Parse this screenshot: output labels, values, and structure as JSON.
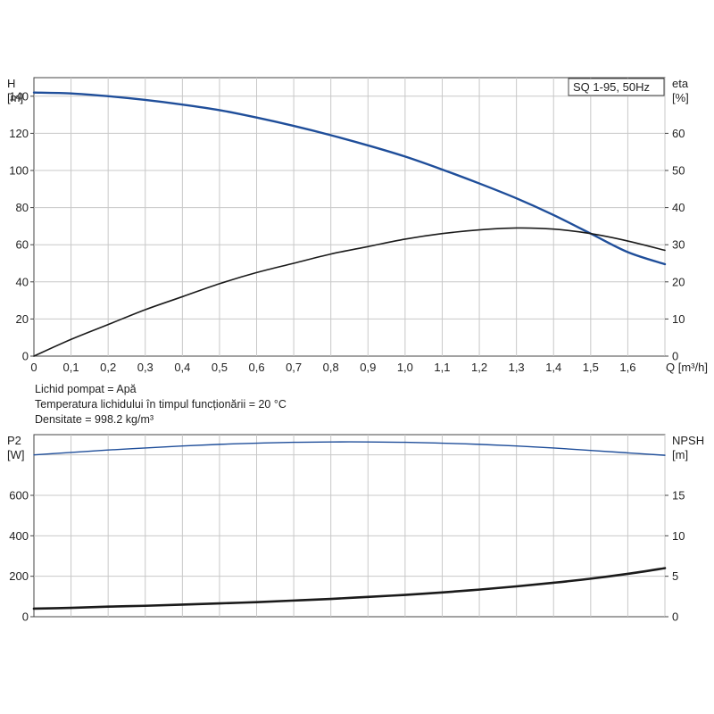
{
  "info_lines": [
    "Lichid pompat = Apă",
    "Temperatura lichidului în timpul funcționării = 20 °C",
    "Densitate = 998.2 kg/m³"
  ],
  "chart_data": [
    {
      "type": "line",
      "legend_text": "SQ 1-95, 50Hz",
      "legend_position": "top-right",
      "grid": true,
      "x_axis": {
        "label": "Q [m³/h]",
        "range": [
          0,
          1.7
        ],
        "ticks": [
          "0",
          "0,1",
          "0,2",
          "0,3",
          "0,4",
          "0,5",
          "0,6",
          "0,7",
          "0,8",
          "0,9",
          "1,0",
          "1,1",
          "1,2",
          "1,3",
          "1,4",
          "1,5",
          "1,6"
        ]
      },
      "y_axis_left": {
        "label_lines": [
          "H",
          "[m]"
        ],
        "range": [
          0,
          150
        ],
        "ticks": [
          "0",
          "20",
          "40",
          "60",
          "80",
          "100",
          "120",
          "140"
        ]
      },
      "y_axis_right": {
        "label_lines": [
          "eta",
          "[%]"
        ],
        "range": [
          0,
          75
        ],
        "ticks": [
          "0",
          "10",
          "20",
          "30",
          "40",
          "50",
          "60"
        ]
      },
      "series": [
        {
          "quantity": "H",
          "axis": "left",
          "color": "#1f4e9a",
          "x": [
            0,
            0.1,
            0.2,
            0.3,
            0.4,
            0.5,
            0.6,
            0.7,
            0.8,
            0.9,
            1.0,
            1.1,
            1.2,
            1.3,
            1.4,
            1.5,
            1.6,
            1.7
          ],
          "y": [
            142,
            141.5,
            140,
            138,
            135.5,
            132.5,
            128.5,
            124,
            119,
            113.5,
            107.5,
            100.5,
            93,
            85,
            76,
            66,
            56,
            49.5
          ]
        },
        {
          "quantity": "eta",
          "axis": "right",
          "color": "#1a1a1a",
          "x": [
            0,
            0.1,
            0.2,
            0.3,
            0.4,
            0.5,
            0.6,
            0.7,
            0.8,
            0.9,
            1.0,
            1.1,
            1.2,
            1.3,
            1.4,
            1.5,
            1.6,
            1.7
          ],
          "y": [
            0,
            4.5,
            8.5,
            12.5,
            16,
            19.5,
            22.5,
            25,
            27.5,
            29.5,
            31.5,
            33,
            34,
            34.5,
            34.2,
            33,
            31,
            28.5
          ]
        }
      ]
    },
    {
      "type": "line",
      "grid": true,
      "x_axis": {
        "range": [
          0,
          1.7
        ]
      },
      "y_axis_left": {
        "label_lines": [
          "P2",
          "[W]"
        ],
        "range": [
          0,
          900
        ],
        "ticks": [
          "0",
          "200",
          "400",
          "600"
        ]
      },
      "y_axis_right": {
        "label_lines": [
          "NPSH",
          "[m]"
        ],
        "range": [
          0,
          22.5
        ],
        "ticks": [
          "0",
          "5",
          "10",
          "15"
        ]
      },
      "series": [
        {
          "quantity": "P2",
          "axis": "left",
          "color": "#1f4e9a",
          "x": [
            0,
            0.1,
            0.2,
            0.3,
            0.4,
            0.5,
            0.6,
            0.7,
            0.8,
            0.9,
            1.0,
            1.1,
            1.2,
            1.3,
            1.4,
            1.5,
            1.6,
            1.7
          ],
          "y": [
            800,
            812,
            824,
            834,
            844,
            852,
            858,
            862,
            864,
            864,
            862,
            858,
            852,
            844,
            834,
            822,
            810,
            798
          ]
        },
        {
          "quantity": "NPSH",
          "axis": "right",
          "color": "#1a1a1a",
          "x": [
            0,
            0.1,
            0.2,
            0.3,
            0.4,
            0.5,
            0.6,
            0.7,
            0.8,
            0.9,
            1.0,
            1.1,
            1.2,
            1.3,
            1.4,
            1.5,
            1.6,
            1.7
          ],
          "y": [
            1.0,
            1.1,
            1.25,
            1.35,
            1.5,
            1.65,
            1.8,
            2.0,
            2.2,
            2.45,
            2.7,
            3.0,
            3.35,
            3.75,
            4.2,
            4.7,
            5.3,
            6.0
          ]
        }
      ]
    }
  ]
}
